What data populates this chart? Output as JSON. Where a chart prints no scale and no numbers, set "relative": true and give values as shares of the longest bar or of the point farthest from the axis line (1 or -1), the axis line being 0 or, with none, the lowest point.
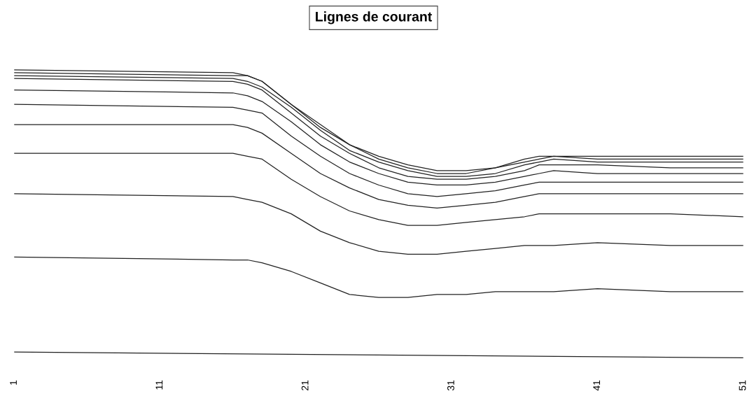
{
  "chart_data": {
    "type": "line",
    "title": "Lignes de courant",
    "relative": true,
    "tick_labels": "x",
    "marker": "none",
    "line_style": "solid",
    "x": [
      1,
      16,
      17,
      18,
      20,
      22,
      24,
      26,
      28,
      30,
      32,
      34,
      36,
      37,
      38,
      41,
      46,
      51
    ],
    "xlim": [
      1,
      51
    ],
    "xticks": [
      1,
      11,
      21,
      31,
      41,
      51
    ],
    "series": [
      {
        "color": "#222222",
        "values": [
          1.0,
          0.99,
          0.98,
          0.96,
          0.88,
          0.81,
          0.74,
          0.7,
          0.67,
          0.65,
          0.65,
          0.66,
          0.69,
          0.7,
          0.7,
          0.7,
          0.7,
          0.7
        ]
      },
      {
        "color": "#222222",
        "values": [
          0.99,
          0.98,
          0.98,
          0.96,
          0.88,
          0.8,
          0.74,
          0.69,
          0.66,
          0.64,
          0.64,
          0.66,
          0.68,
          0.69,
          0.7,
          0.69,
          0.69,
          0.69
        ]
      },
      {
        "color": "#222222",
        "values": [
          0.98,
          0.97,
          0.96,
          0.94,
          0.87,
          0.79,
          0.72,
          0.68,
          0.65,
          0.63,
          0.63,
          0.64,
          0.67,
          0.68,
          0.69,
          0.68,
          0.68,
          0.68
        ]
      },
      {
        "color": "#222222",
        "values": [
          0.97,
          0.96,
          0.95,
          0.93,
          0.85,
          0.77,
          0.71,
          0.66,
          0.63,
          0.62,
          0.62,
          0.63,
          0.65,
          0.67,
          0.67,
          0.67,
          0.66,
          0.66
        ]
      },
      {
        "color": "#222222",
        "values": [
          0.93,
          0.92,
          0.91,
          0.89,
          0.82,
          0.74,
          0.68,
          0.64,
          0.61,
          0.6,
          0.6,
          0.61,
          0.63,
          0.64,
          0.65,
          0.64,
          0.64,
          0.64
        ]
      },
      {
        "color": "#222222",
        "values": [
          0.88,
          0.87,
          0.86,
          0.85,
          0.77,
          0.7,
          0.64,
          0.6,
          0.57,
          0.56,
          0.57,
          0.58,
          0.6,
          0.61,
          0.61,
          0.61,
          0.61,
          0.61
        ]
      },
      {
        "color": "#222222",
        "values": [
          0.81,
          0.81,
          0.8,
          0.78,
          0.71,
          0.64,
          0.59,
          0.55,
          0.53,
          0.52,
          0.53,
          0.54,
          0.56,
          0.57,
          0.57,
          0.57,
          0.57,
          0.57
        ]
      },
      {
        "color": "#222222",
        "values": [
          0.71,
          0.71,
          0.7,
          0.69,
          0.62,
          0.56,
          0.51,
          0.48,
          0.46,
          0.46,
          0.47,
          0.48,
          0.49,
          0.5,
          0.5,
          0.5,
          0.5,
          0.49
        ]
      },
      {
        "color": "#222222",
        "values": [
          0.57,
          0.56,
          0.55,
          0.54,
          0.5,
          0.44,
          0.4,
          0.37,
          0.36,
          0.36,
          0.37,
          0.38,
          0.39,
          0.39,
          0.39,
          0.4,
          0.39,
          0.39
        ]
      },
      {
        "color": "#222222",
        "values": [
          0.35,
          0.34,
          0.34,
          0.33,
          0.3,
          0.26,
          0.22,
          0.21,
          0.21,
          0.22,
          0.22,
          0.23,
          0.23,
          0.23,
          0.23,
          0.24,
          0.23,
          0.23
        ]
      },
      {
        "color": "#222222",
        "x": [
          1,
          51
        ],
        "values": [
          0.02,
          0.0
        ]
      }
    ]
  }
}
